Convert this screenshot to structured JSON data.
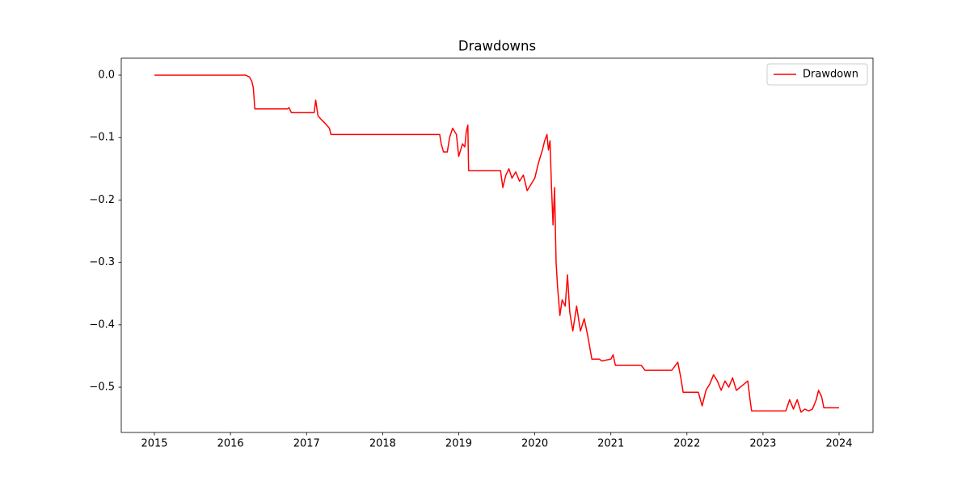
{
  "chart_data": {
    "type": "line",
    "title": "Drawdowns",
    "x": [
      2015.0,
      2016.2,
      2016.25,
      2016.28,
      2016.3,
      2016.32,
      2016.75,
      2016.77,
      2016.8,
      2017.1,
      2017.12,
      2017.15,
      2017.2,
      2017.25,
      2017.3,
      2017.32,
      2018.75,
      2018.77,
      2018.8,
      2018.85,
      2018.88,
      2018.92,
      2018.97,
      2019.0,
      2019.05,
      2019.08,
      2019.1,
      2019.12,
      2019.13,
      2019.55,
      2019.58,
      2019.62,
      2019.66,
      2019.7,
      2019.75,
      2019.8,
      2019.85,
      2019.9,
      2019.95,
      2020.0,
      2020.05,
      2020.1,
      2020.13,
      2020.16,
      2020.18,
      2020.2,
      2020.22,
      2020.24,
      2020.26,
      2020.28,
      2020.3,
      2020.33,
      2020.36,
      2020.4,
      2020.43,
      2020.46,
      2020.5,
      2020.55,
      2020.6,
      2020.65,
      2020.7,
      2020.75,
      2020.85,
      2020.88,
      2021.0,
      2021.03,
      2021.06,
      2021.1,
      2021.4,
      2021.45,
      2021.8,
      2021.88,
      2021.92,
      2021.95,
      2022.15,
      2022.2,
      2022.25,
      2022.3,
      2022.35,
      2022.4,
      2022.45,
      2022.5,
      2022.55,
      2022.6,
      2022.65,
      2022.7,
      2022.75,
      2022.8,
      2022.83,
      2022.85,
      2023.3,
      2023.35,
      2023.4,
      2023.45,
      2023.5,
      2023.55,
      2023.6,
      2023.65,
      2023.7,
      2023.73,
      2023.77,
      2023.8,
      2024.0
    ],
    "series": [
      {
        "name": "Drawdown",
        "color": "#ff0000",
        "values": [
          0,
          0,
          -0.003,
          -0.01,
          -0.02,
          -0.054,
          -0.054,
          -0.052,
          -0.06,
          -0.06,
          -0.04,
          -0.065,
          -0.072,
          -0.078,
          -0.085,
          -0.095,
          -0.095,
          -0.11,
          -0.123,
          -0.123,
          -0.1,
          -0.085,
          -0.095,
          -0.13,
          -0.11,
          -0.115,
          -0.09,
          -0.08,
          -0.153,
          -0.153,
          -0.18,
          -0.16,
          -0.15,
          -0.165,
          -0.155,
          -0.17,
          -0.16,
          -0.185,
          -0.175,
          -0.165,
          -0.14,
          -0.12,
          -0.105,
          -0.095,
          -0.12,
          -0.105,
          -0.18,
          -0.24,
          -0.18,
          -0.3,
          -0.34,
          -0.385,
          -0.36,
          -0.37,
          -0.32,
          -0.38,
          -0.41,
          -0.37,
          -0.41,
          -0.39,
          -0.42,
          -0.455,
          -0.455,
          -0.458,
          -0.455,
          -0.448,
          -0.465,
          -0.465,
          -0.465,
          -0.473,
          -0.473,
          -0.46,
          -0.485,
          -0.508,
          -0.508,
          -0.53,
          -0.505,
          -0.495,
          -0.48,
          -0.49,
          -0.505,
          -0.49,
          -0.5,
          -0.485,
          -0.505,
          -0.5,
          -0.495,
          -0.49,
          -0.52,
          -0.538,
          -0.538,
          -0.52,
          -0.535,
          -0.52,
          -0.54,
          -0.535,
          -0.538,
          -0.535,
          -0.52,
          -0.505,
          -0.515,
          -0.533,
          -0.533
        ]
      }
    ],
    "xlim": [
      2014.564,
      2024.446
    ],
    "xticks": [
      2015,
      2016,
      2017,
      2018,
      2019,
      2020,
      2021,
      2022,
      2023,
      2024
    ],
    "ylim": [
      -0.5725,
      0.0272
    ],
    "yticks": [
      {
        "value": 0,
        "label": "0.0"
      },
      {
        "value": -0.1,
        "label": "−0.1"
      },
      {
        "value": -0.2,
        "label": "−0.2"
      },
      {
        "value": -0.3,
        "label": "−0.3"
      },
      {
        "value": -0.4,
        "label": "−0.4"
      },
      {
        "value": -0.5,
        "label": "−0.5"
      }
    ],
    "grid": false,
    "legend": "upper-right"
  }
}
